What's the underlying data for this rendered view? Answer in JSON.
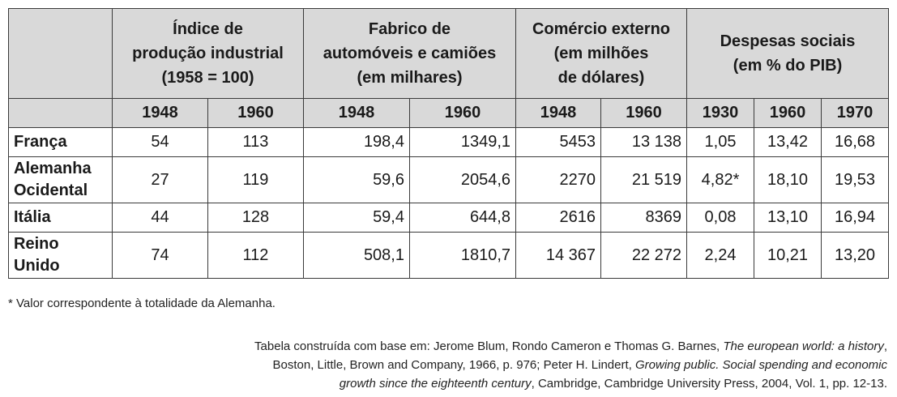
{
  "table": {
    "groups": [
      "Índice de produção industrial (1958 = 100)",
      "Fabrico de automóveis e camiões (em milhares)",
      "Comércio externo (em milhões de dólares)",
      "Despesas sociais (em % do PIB)"
    ],
    "group_lines": [
      [
        "Índice de",
        "produção industrial",
        "(1958 = 100)"
      ],
      [
        "Fabrico de",
        "automóveis e camiões",
        "(em milhares)"
      ],
      [
        "Comércio externo",
        "(em milhões",
        "de dólares)"
      ],
      [
        "Despesas sociais",
        "(em % do PIB)"
      ]
    ],
    "years": [
      "1948",
      "1960",
      "1948",
      "1960",
      "1948",
      "1960",
      "1930",
      "1960",
      "1970"
    ],
    "rows": [
      {
        "country_lines": [
          "França"
        ],
        "values": [
          "54",
          "113",
          "198,4",
          "1349,1",
          "5453",
          "13 138",
          "1,05",
          "13,42",
          "16,68"
        ]
      },
      {
        "country_lines": [
          "Alemanha",
          "Ocidental"
        ],
        "values": [
          "27",
          "119",
          "59,6",
          "2054,6",
          "2270",
          "21 519",
          "4,82*",
          "18,10",
          "19,53"
        ]
      },
      {
        "country_lines": [
          "Itália"
        ],
        "values": [
          "44",
          "128",
          "59,4",
          "644,8",
          "2616",
          "8369",
          "0,08",
          "13,10",
          "16,94"
        ]
      },
      {
        "country_lines": [
          "Reino",
          "Unido"
        ],
        "values": [
          "74",
          "112",
          "508,1",
          "1810,7",
          "14 367",
          "22 272",
          "2,24",
          "10,21",
          "13,20"
        ]
      }
    ]
  },
  "footnote": "* Valor correspondente à totalidade da Alemanha.",
  "source": {
    "line1_a": "Tabela construída com base em: Jerome Blum, Rondo Cameron e Thomas G. Barnes, ",
    "line1_i": "The european world: a history",
    "line1_b": ",",
    "line2_a": "Boston, Little, Brown and Company, 1966, p. 976; Peter H. Lindert, ",
    "line2_i": "Growing public. Social spending and economic",
    "line3_i": "growth since the eighteenth century",
    "line3_b": ", Cambridge, Cambridge University Press, 2004, Vol. 1, pp. 12-13."
  }
}
